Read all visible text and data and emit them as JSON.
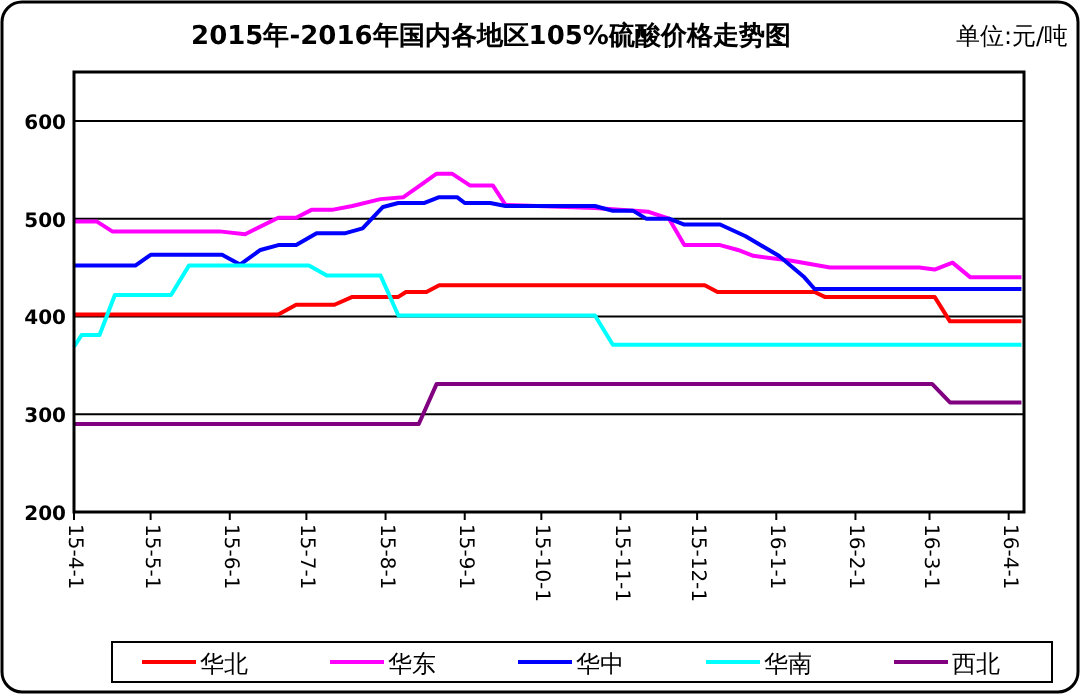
{
  "chart_data": {
    "type": "line",
    "title": "2015年-2016年国内各地区105%硫酸价格走势图",
    "annotations": [
      "单位:元/吨"
    ],
    "xlim": [
      "2015-04-01",
      "2016-04-07"
    ],
    "xticks": [
      {
        "value": "2015-04-01",
        "label": "15-4-1"
      },
      {
        "value": "2015-05-01",
        "label": "15-5-1"
      },
      {
        "value": "2015-06-01",
        "label": "15-6-1"
      },
      {
        "value": "2015-07-01",
        "label": "15-7-1"
      },
      {
        "value": "2015-08-01",
        "label": "15-8-1"
      },
      {
        "value": "2015-09-01",
        "label": "15-9-1"
      },
      {
        "value": "2015-10-01",
        "label": "15-10-1"
      },
      {
        "value": "2015-11-01",
        "label": "15-11-1"
      },
      {
        "value": "2015-12-01",
        "label": "15-12-1"
      },
      {
        "value": "2016-01-01",
        "label": "16-1-1"
      },
      {
        "value": "2016-02-01",
        "label": "16-2-1"
      },
      {
        "value": "2016-03-01",
        "label": "16-3-1"
      },
      {
        "value": "2016-04-01",
        "label": "16-4-1"
      }
    ],
    "ylim": [
      200,
      650
    ],
    "yticks": [
      200,
      300,
      400,
      500,
      600
    ],
    "grid": "y",
    "legend": "bottom",
    "marker": "none",
    "line_style": "solid",
    "series": [
      {
        "name": "华北",
        "color": "#ff0000",
        "x": [
          "2015-04-01",
          "2015-06-20",
          "2015-06-27",
          "2015-07-12",
          "2015-07-19",
          "2015-08-06",
          "2015-08-09",
          "2015-08-17",
          "2015-08-22",
          "2015-12-04",
          "2015-12-09",
          "2016-01-16",
          "2016-01-20",
          "2016-03-03",
          "2016-03-09",
          "2016-04-06"
        ],
        "values": [
          402,
          402,
          412,
          412,
          420,
          420,
          425,
          425,
          432,
          432,
          425,
          425,
          420,
          420,
          395,
          395
        ]
      },
      {
        "name": "华东",
        "color": "#ff00ff",
        "x": [
          "2015-04-01",
          "2015-04-10",
          "2015-04-16",
          "2015-05-28",
          "2015-06-07",
          "2015-06-20",
          "2015-06-27",
          "2015-07-03",
          "2015-07-11",
          "2015-07-19",
          "2015-07-30",
          "2015-08-08",
          "2015-08-14",
          "2015-08-21",
          "2015-08-27",
          "2015-09-03",
          "2015-09-12",
          "2015-09-17",
          "2015-10-22",
          "2015-11-12",
          "2015-11-20",
          "2015-11-26",
          "2015-12-10",
          "2015-12-17",
          "2015-12-23",
          "2016-01-07",
          "2016-01-22",
          "2016-02-26",
          "2016-03-03",
          "2016-03-10",
          "2016-03-17",
          "2016-04-06"
        ],
        "values": [
          497,
          497,
          487,
          487,
          484,
          501,
          501,
          509,
          509,
          513,
          520,
          522,
          533,
          546,
          546,
          534,
          534,
          514,
          511,
          507,
          500,
          473,
          473,
          468,
          462,
          457,
          450,
          450,
          448,
          455,
          440,
          440
        ]
      },
      {
        "name": "华中",
        "color": "#0000ff",
        "x": [
          "2015-04-01",
          "2015-04-25",
          "2015-05-01",
          "2015-05-29",
          "2015-06-05",
          "2015-06-13",
          "2015-06-20",
          "2015-06-27",
          "2015-07-05",
          "2015-07-16",
          "2015-07-23",
          "2015-07-31",
          "2015-08-06",
          "2015-08-16",
          "2015-08-22",
          "2015-08-29",
          "2015-09-01",
          "2015-09-11",
          "2015-09-17",
          "2015-10-22",
          "2015-10-29",
          "2015-11-06",
          "2015-11-11",
          "2015-11-20",
          "2015-11-26",
          "2015-12-10",
          "2015-12-20",
          "2016-01-02",
          "2016-01-12",
          "2016-01-16",
          "2016-04-06"
        ],
        "values": [
          452,
          452,
          463,
          463,
          453,
          468,
          473,
          473,
          485,
          485,
          490,
          512,
          516,
          516,
          522,
          522,
          516,
          516,
          513,
          513,
          508,
          508,
          500,
          500,
          494,
          494,
          482,
          462,
          440,
          428,
          428
        ]
      },
      {
        "name": "华南",
        "color": "#00ffff",
        "x": [
          "2015-04-01",
          "2015-04-04",
          "2015-04-11",
          "2015-04-17",
          "2015-05-09",
          "2015-05-16",
          "2015-07-02",
          "2015-07-09",
          "2015-07-30",
          "2015-08-06",
          "2015-10-22",
          "2015-10-29",
          "2016-04-06"
        ],
        "values": [
          369,
          381,
          381,
          422,
          422,
          452,
          452,
          442,
          442,
          401,
          401,
          371,
          371
        ]
      },
      {
        "name": "西北",
        "color": "#800080",
        "x": [
          "2015-04-01",
          "2015-08-14",
          "2015-08-21",
          "2016-03-02",
          "2016-03-09",
          "2016-04-06"
        ],
        "values": [
          290,
          290,
          331,
          331,
          312,
          312
        ]
      }
    ]
  }
}
